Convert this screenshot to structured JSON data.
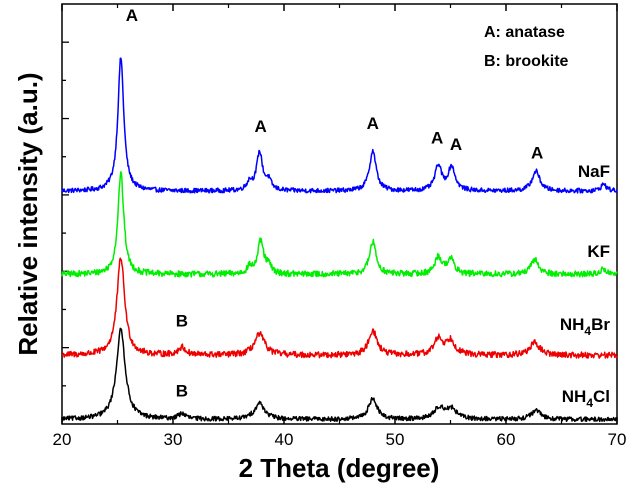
{
  "chart_data": {
    "type": "line",
    "xlabel": "2 Theta (degree)",
    "ylabel": "Relative intensity (a.u.)",
    "xlim": [
      20,
      70
    ],
    "xticks": [
      "20",
      "30",
      "40",
      "50",
      "60",
      "70"
    ],
    "yticks_labeled": false,
    "grid": false,
    "legend": {
      "placement": "top-right",
      "entries": [
        "A: anatase",
        "B: brookite"
      ]
    },
    "peak_marker_labels": {
      "anatase": "A",
      "brookite": "B"
    },
    "series": [
      {
        "name": "NaF",
        "color": "#0000ff",
        "baseline": 6.1,
        "noise": 0.06,
        "peaks": [
          {
            "x": 25.3,
            "h": 3.5,
            "w": 0.32
          },
          {
            "x": 36.9,
            "h": 0.22,
            "w": 0.3
          },
          {
            "x": 37.8,
            "h": 1.0,
            "w": 0.32
          },
          {
            "x": 38.6,
            "h": 0.25,
            "w": 0.3
          },
          {
            "x": 48.0,
            "h": 1.05,
            "w": 0.36
          },
          {
            "x": 53.9,
            "h": 0.65,
            "w": 0.36
          },
          {
            "x": 55.1,
            "h": 0.62,
            "w": 0.38
          },
          {
            "x": 62.7,
            "h": 0.52,
            "w": 0.42
          },
          {
            "x": 68.8,
            "h": 0.18,
            "w": 0.3
          }
        ]
      },
      {
        "name": "KF",
        "color": "#00ee00",
        "baseline": 3.92,
        "noise": 0.08,
        "peaks": [
          {
            "x": 25.3,
            "h": 2.65,
            "w": 0.32
          },
          {
            "x": 36.9,
            "h": 0.18,
            "w": 0.3
          },
          {
            "x": 37.9,
            "h": 0.85,
            "w": 0.32
          },
          {
            "x": 38.6,
            "h": 0.2,
            "w": 0.3
          },
          {
            "x": 48.0,
            "h": 0.85,
            "w": 0.36
          },
          {
            "x": 53.9,
            "h": 0.45,
            "w": 0.36
          },
          {
            "x": 55.0,
            "h": 0.4,
            "w": 0.38
          },
          {
            "x": 62.6,
            "h": 0.38,
            "w": 0.42
          },
          {
            "x": 68.8,
            "h": 0.14,
            "w": 0.3
          }
        ]
      },
      {
        "name": "NH4Br",
        "color": "#ee0000",
        "baseline": 1.8,
        "noise": 0.08,
        "peaks": [
          {
            "x": 25.3,
            "h": 2.55,
            "w": 0.42
          },
          {
            "x": 30.8,
            "h": 0.2,
            "w": 0.4
          },
          {
            "x": 37.8,
            "h": 0.55,
            "w": 0.55
          },
          {
            "x": 48.0,
            "h": 0.65,
            "w": 0.45
          },
          {
            "x": 53.9,
            "h": 0.42,
            "w": 0.45
          },
          {
            "x": 55.0,
            "h": 0.38,
            "w": 0.5
          },
          {
            "x": 62.6,
            "h": 0.32,
            "w": 0.55
          }
        ]
      },
      {
        "name": "NH4Cl",
        "color": "#000000",
        "baseline": 0.12,
        "noise": 0.06,
        "peaks": [
          {
            "x": 25.3,
            "h": 2.35,
            "w": 0.48
          },
          {
            "x": 30.8,
            "h": 0.14,
            "w": 0.4
          },
          {
            "x": 37.8,
            "h": 0.42,
            "w": 0.55
          },
          {
            "x": 48.0,
            "h": 0.55,
            "w": 0.45
          },
          {
            "x": 54.0,
            "h": 0.3,
            "w": 0.55
          },
          {
            "x": 55.1,
            "h": 0.26,
            "w": 0.55
          },
          {
            "x": 62.7,
            "h": 0.22,
            "w": 0.55
          }
        ]
      }
    ],
    "series_labels": [
      {
        "text": "NaF",
        "sub": "",
        "tail": ""
      },
      {
        "text": "KF",
        "sub": "",
        "tail": ""
      },
      {
        "text": "NH",
        "sub": "4",
        "tail": "Br"
      },
      {
        "text": "NH",
        "sub": "4",
        "tail": "Cl"
      }
    ],
    "peak_markers": [
      {
        "label": "A",
        "x": 26.3,
        "y": 10.55
      },
      {
        "label": "A",
        "x": 37.9,
        "y": 7.65
      },
      {
        "label": "A",
        "x": 48.0,
        "y": 7.72
      },
      {
        "label": "A",
        "x": 53.8,
        "y": 7.35
      },
      {
        "label": "A",
        "x": 55.5,
        "y": 7.18
      },
      {
        "label": "A",
        "x": 62.8,
        "y": 6.95
      },
      {
        "label": "B",
        "x": 30.8,
        "y": 2.55
      },
      {
        "label": "B",
        "x": 30.8,
        "y": 0.72
      }
    ]
  }
}
